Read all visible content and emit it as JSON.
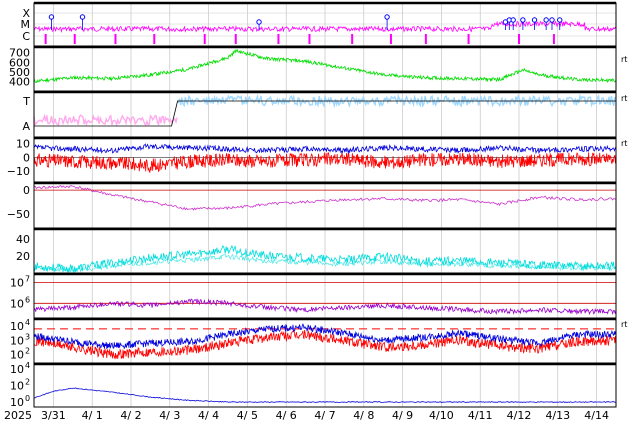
{
  "chart_data": {
    "type": "line",
    "x_axis": {
      "year_label": "2025",
      "ticks": [
        "3/31",
        "4/ 1",
        "4/ 2",
        "4/ 3",
        "4/ 4",
        "4/ 5",
        "4/ 6",
        "4/ 7",
        "4/ 8",
        "4/ 9",
        "4/10",
        "4/11",
        "4/12",
        "4/13",
        "4/14"
      ],
      "range_days": [
        0,
        15.0
      ]
    },
    "right_tag": "rt",
    "panels": [
      {
        "id": "xray-flares",
        "type": "event",
        "class_labels": [
          "X",
          "M",
          "C"
        ],
        "flare_days": [
          0.45,
          1.25,
          5.8,
          9.1,
          12.15,
          12.25,
          12.35,
          12.6,
          12.9,
          13.2,
          13.35,
          13.55
        ],
        "tick_days": [
          0.3,
          1.05,
          2.1,
          3.1,
          4.4,
          5.2,
          6.3,
          7.1,
          8.2,
          9.2,
          10.1,
          11.2,
          12.5,
          13.4
        ],
        "colors": {
          "flux": "#ff00ff",
          "flare": "#0000ff"
        }
      },
      {
        "id": "solar-wind-speed",
        "type": "line",
        "ylim": [
          300,
          760
        ],
        "yticks": [
          400,
          500,
          600,
          700
        ],
        "color": "#00dd00",
        "points": [
          [
            0,
            400
          ],
          [
            1,
            440
          ],
          [
            2,
            430
          ],
          [
            3,
            470
          ],
          [
            4,
            530
          ],
          [
            5,
            650
          ],
          [
            5.2,
            720
          ],
          [
            6,
            640
          ],
          [
            7,
            610
          ],
          [
            8,
            540
          ],
          [
            9,
            470
          ],
          [
            10,
            440
          ],
          [
            11,
            430
          ],
          [
            12,
            420
          ],
          [
            12.6,
            520
          ],
          [
            13,
            470
          ],
          [
            14,
            420
          ],
          [
            15,
            410
          ]
        ]
      },
      {
        "id": "imf-sector",
        "type": "line",
        "sector_labels": [
          "T",
          "A"
        ],
        "colors": {
          "toward": "#9fd8ff",
          "away": "#ffaaee",
          "line": "#000000"
        },
        "switch_day": 3.7
      },
      {
        "id": "imf-bz",
        "type": "line",
        "ylim": [
          -18,
          14
        ],
        "yticks": [
          -10,
          0,
          10
        ],
        "series": [
          {
            "color": "#ff0000",
            "points": [
              [
                0,
                -2
              ],
              [
                1,
                -3
              ],
              [
                2,
                -4
              ],
              [
                3,
                -6
              ],
              [
                4,
                -3
              ],
              [
                5,
                -2
              ],
              [
                6,
                -3
              ],
              [
                7,
                -2
              ],
              [
                8,
                -1
              ],
              [
                9,
                -4
              ],
              [
                10,
                -2
              ],
              [
                11,
                -1
              ],
              [
                12,
                -3
              ],
              [
                13,
                -2
              ],
              [
                14,
                -1
              ],
              [
                15,
                -2
              ]
            ]
          },
          {
            "color": "#0000dd",
            "points": [
              [
                0,
                7
              ],
              [
                1,
                6
              ],
              [
                2,
                5
              ],
              [
                3,
                8
              ],
              [
                4,
                7
              ],
              [
                5,
                6
              ],
              [
                6,
                5
              ],
              [
                7,
                6
              ],
              [
                8,
                5
              ],
              [
                9,
                7
              ],
              [
                10,
                6
              ],
              [
                11,
                5
              ],
              [
                12,
                7
              ],
              [
                13,
                5
              ],
              [
                14,
                6
              ],
              [
                15,
                6
              ]
            ]
          }
        ]
      },
      {
        "id": "dst",
        "type": "line",
        "ylim": [
          -80,
          15
        ],
        "yticks": [
          -50,
          0
        ],
        "color": "#cc33cc",
        "zero_color": "#cc0000",
        "points": [
          [
            0,
            5
          ],
          [
            1,
            8
          ],
          [
            2,
            -10
          ],
          [
            3,
            -25
          ],
          [
            4,
            -40
          ],
          [
            5,
            -38
          ],
          [
            6,
            -30
          ],
          [
            7,
            -25
          ],
          [
            8,
            -20
          ],
          [
            9,
            -18
          ],
          [
            10,
            -22
          ],
          [
            11,
            -20
          ],
          [
            12,
            -30
          ],
          [
            13,
            -15
          ],
          [
            14,
            -20
          ],
          [
            15,
            -18
          ]
        ]
      },
      {
        "id": "kp-like",
        "type": "line",
        "ylim": [
          0,
          52
        ],
        "yticks": [
          20,
          40
        ],
        "color": "#00dddd",
        "points": [
          [
            0,
            8
          ],
          [
            1,
            5
          ],
          [
            2,
            12
          ],
          [
            3,
            18
          ],
          [
            4,
            22
          ],
          [
            5,
            28
          ],
          [
            6,
            20
          ],
          [
            7,
            18
          ],
          [
            8,
            15
          ],
          [
            9,
            20
          ],
          [
            10,
            14
          ],
          [
            11,
            15
          ],
          [
            12,
            12
          ],
          [
            13,
            10
          ],
          [
            14,
            8
          ],
          [
            15,
            9
          ]
        ]
      },
      {
        "id": "electron-flux",
        "type": "line",
        "log": true,
        "ylim_exp": [
          5.3,
          7.4
        ],
        "ytick_exp": [
          6,
          7
        ],
        "color": "#9900cc",
        "ref_color": "#cc0000",
        "points_exp": [
          [
            0,
            5.7
          ],
          [
            1,
            5.8
          ],
          [
            2,
            6.0
          ],
          [
            3,
            5.9
          ],
          [
            4,
            6.1
          ],
          [
            5,
            6.0
          ],
          [
            6,
            5.8
          ],
          [
            7,
            5.7
          ],
          [
            8,
            5.8
          ],
          [
            9,
            5.9
          ],
          [
            10,
            5.8
          ],
          [
            11,
            5.7
          ],
          [
            12,
            5.6
          ],
          [
            13,
            5.7
          ],
          [
            14,
            5.6
          ],
          [
            15,
            5.6
          ]
        ]
      },
      {
        "id": "proton-flux",
        "type": "line",
        "log": true,
        "ylim_exp": [
          1.4,
          4.5
        ],
        "ytick_exp": [
          2,
          3,
          4
        ],
        "series": [
          {
            "color": "#ff0000",
            "points_exp": [
              [
                0,
                3.0
              ],
              [
                1,
                2.5
              ],
              [
                2,
                2.0
              ],
              [
                3,
                2.2
              ],
              [
                4,
                2.3
              ],
              [
                5,
                2.8
              ],
              [
                6,
                3.2
              ],
              [
                7,
                3.4
              ],
              [
                8,
                3.0
              ],
              [
                9,
                2.5
              ],
              [
                10,
                2.7
              ],
              [
                11,
                3.0
              ],
              [
                12,
                2.6
              ],
              [
                13,
                2.4
              ],
              [
                14,
                2.9
              ],
              [
                15,
                3.0
              ]
            ]
          },
          {
            "color": "#0000dd",
            "points_exp": [
              [
                0,
                3.3
              ],
              [
                1,
                2.9
              ],
              [
                2,
                2.6
              ],
              [
                3,
                2.8
              ],
              [
                4,
                2.9
              ],
              [
                5,
                3.4
              ],
              [
                6,
                3.8
              ],
              [
                7,
                3.9
              ],
              [
                8,
                3.5
              ],
              [
                9,
                3.0
              ],
              [
                10,
                3.2
              ],
              [
                11,
                3.5
              ],
              [
                12,
                3.1
              ],
              [
                13,
                2.8
              ],
              [
                14,
                3.4
              ],
              [
                15,
                3.4
              ]
            ]
          }
        ],
        "threshold_exp": 3.8,
        "threshold_color": "#ff0000"
      },
      {
        "id": "high-energy-proton",
        "type": "line",
        "log": true,
        "ylim_exp": [
          -0.6,
          4.6
        ],
        "ytick_exp": [
          0,
          2,
          4
        ],
        "color": "#0000dd",
        "points_exp": [
          [
            0,
            0.5
          ],
          [
            0.5,
            1.3
          ],
          [
            1,
            1.7
          ],
          [
            2,
            1.2
          ],
          [
            3,
            0.6
          ],
          [
            4,
            0.2
          ],
          [
            5,
            0.0
          ],
          [
            6,
            0.0
          ],
          [
            7,
            0.0
          ],
          [
            8,
            0.0
          ],
          [
            9,
            0.0
          ],
          [
            10,
            0.0
          ],
          [
            11,
            0.0
          ],
          [
            12,
            0.0
          ],
          [
            13,
            0.0
          ],
          [
            14,
            0.0
          ],
          [
            15,
            0.0
          ]
        ]
      }
    ]
  }
}
